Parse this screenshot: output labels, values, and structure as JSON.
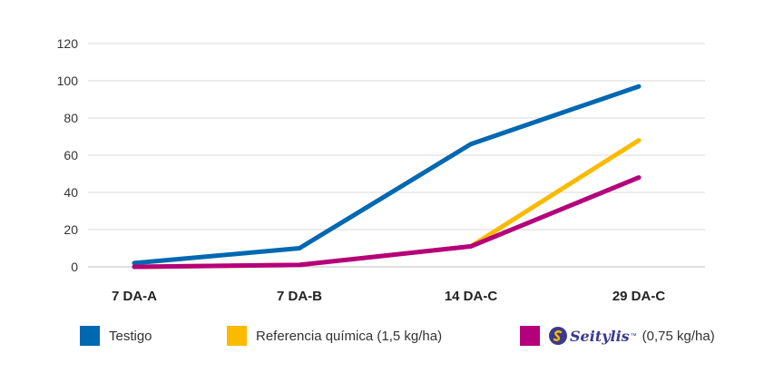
{
  "chart_data": {
    "type": "line",
    "categories": [
      "7 DA-A",
      "7 DA-B",
      "14 DA-C",
      "29 DA-C"
    ],
    "ylim": [
      0,
      120
    ],
    "yticks": [
      0,
      20,
      40,
      60,
      80,
      100,
      120
    ],
    "grid": true,
    "legend_position": "bottom",
    "series": [
      {
        "name": "Testigo",
        "color": "#0068b1",
        "values": [
          2,
          10,
          66,
          97
        ]
      },
      {
        "name": "Referencia química (1,5 kg/ha)",
        "color": "#fbba00",
        "values": [
          0,
          1,
          11,
          68
        ]
      },
      {
        "name": "Seitylis",
        "suffix": "(0,75 kg/ha)",
        "color": "#b5007c",
        "values": [
          0,
          1,
          11,
          48
        ]
      }
    ]
  },
  "legend": {
    "items": [
      {
        "label": "Testigo",
        "color": "#0068b1"
      },
      {
        "label": "Referencia química (1,5 kg/ha)",
        "color": "#fbba00"
      },
      {
        "brand": "Seitylis",
        "brand_mark": "™",
        "label": "(0,75 kg/ha)",
        "color": "#b5007c"
      }
    ]
  }
}
